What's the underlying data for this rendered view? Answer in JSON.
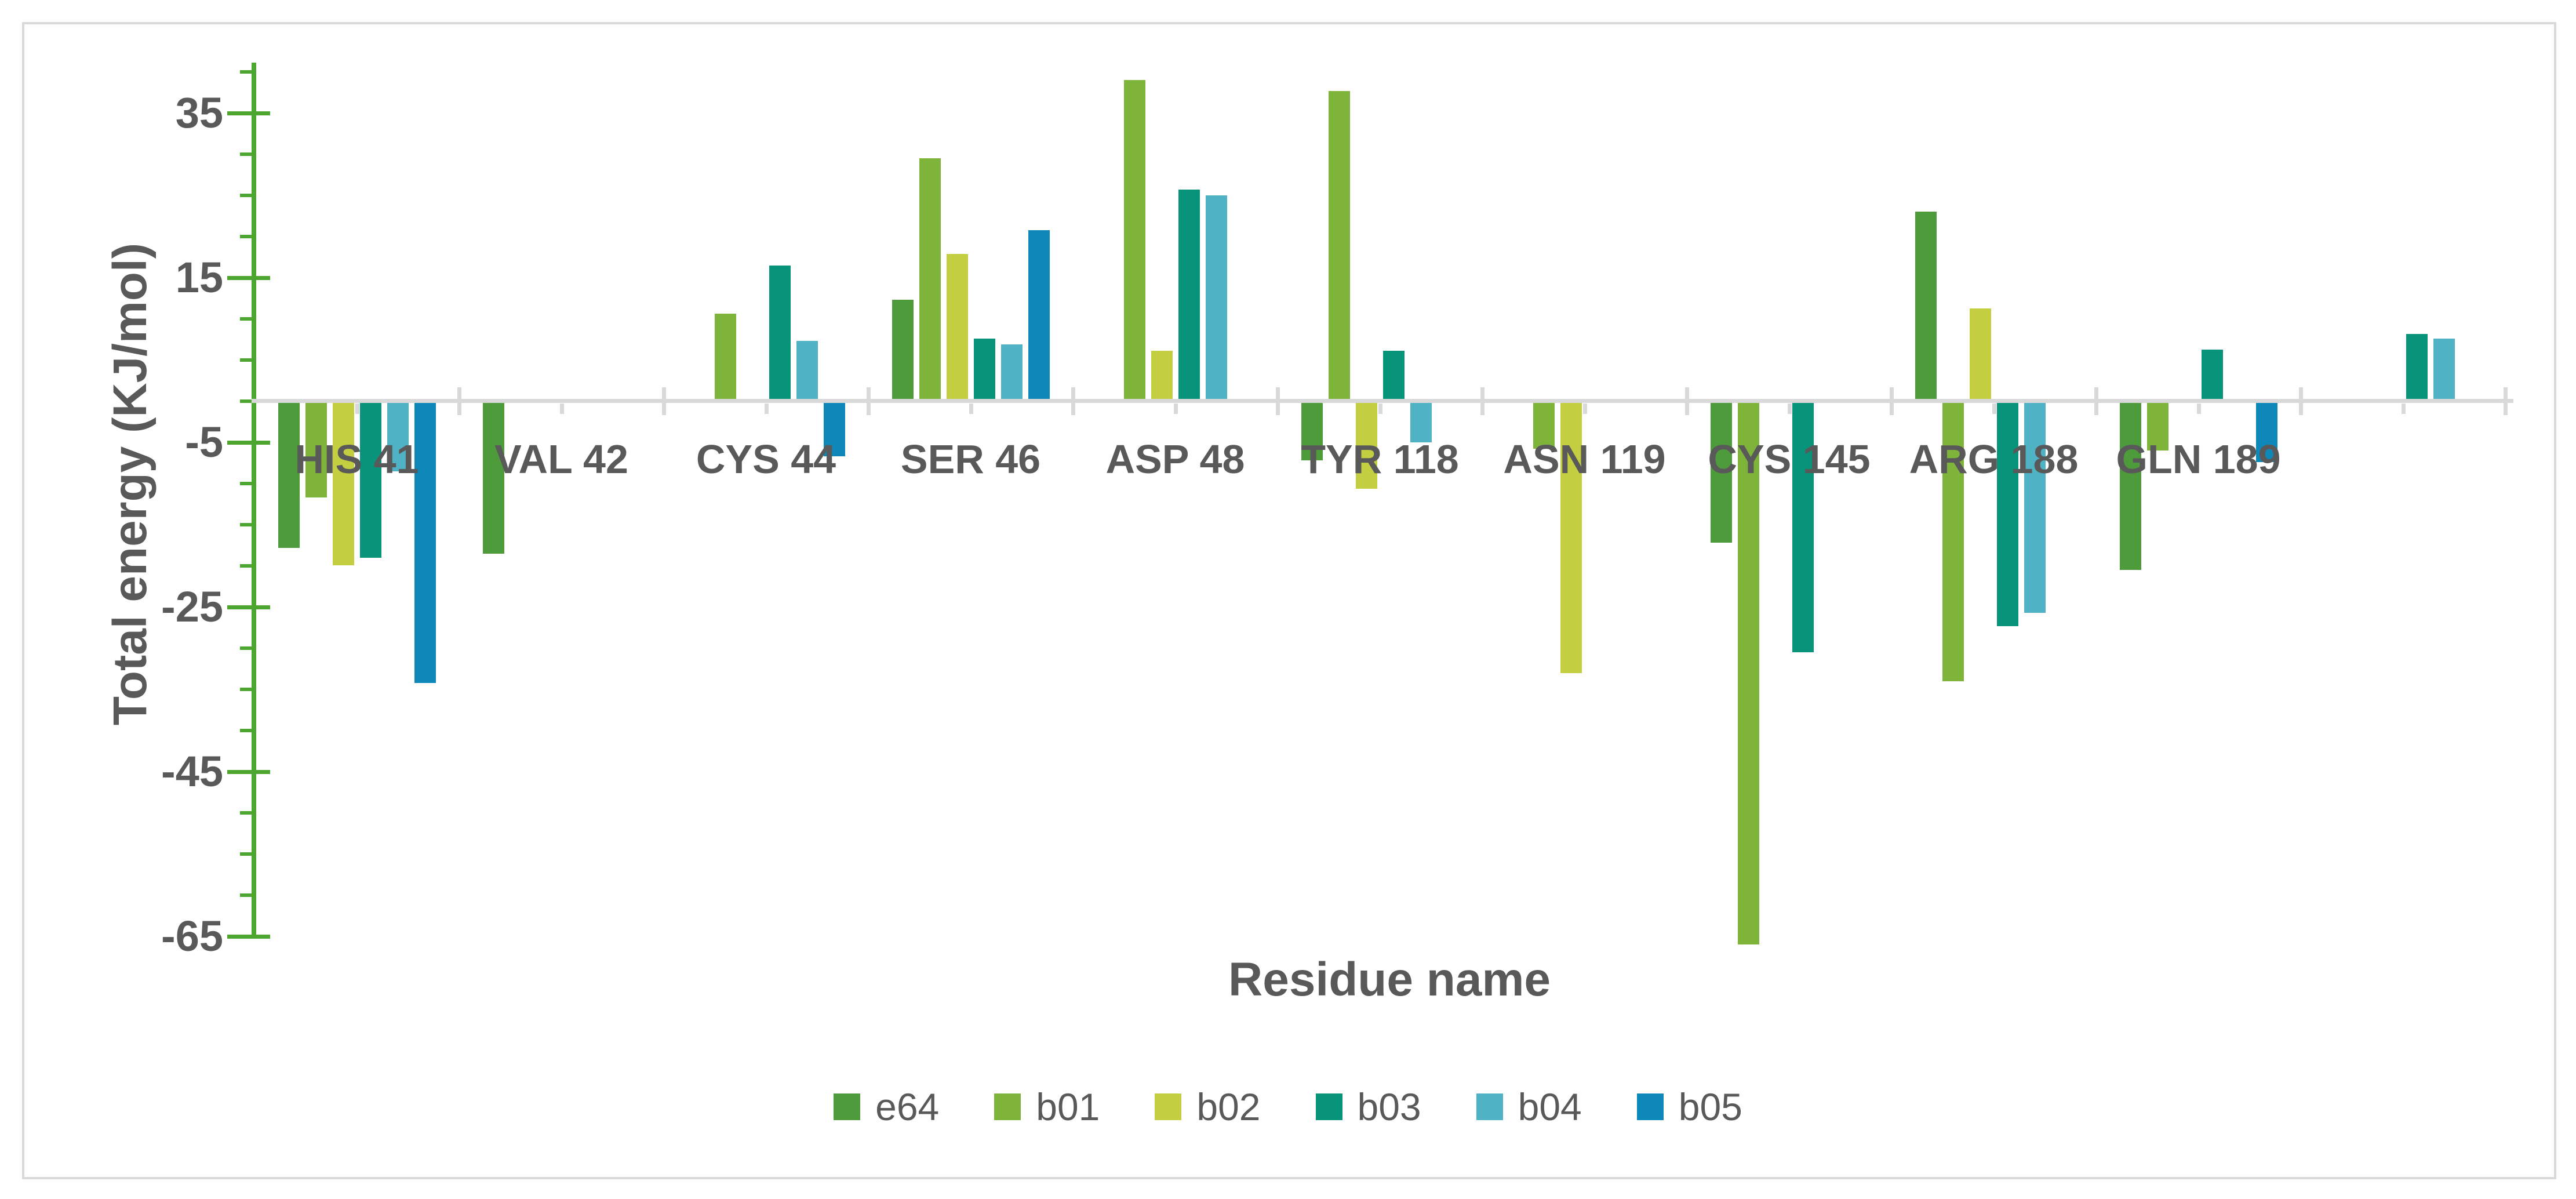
{
  "frame": {
    "border_color": "#D9D9D9",
    "background_color": "#FFFFFF"
  },
  "y_axis": {
    "title": "Total energy (KJ/mol)",
    "tick_labels": [
      "35",
      "15",
      "-5",
      "-25",
      "-45",
      "-65"
    ],
    "tick_values": [
      35,
      15,
      -5,
      -25,
      -45,
      -65
    ],
    "minor_tick_step": 5,
    "axis_color": "#4CA62F",
    "label_color": "#595959"
  },
  "x_axis": {
    "title": "Residue name",
    "line_color": "#D9D9D9",
    "label_color": "#595959"
  },
  "legend": [
    {
      "label": "e64",
      "color": "#4E9B3C"
    },
    {
      "label": "b01",
      "color": "#7FB43B"
    },
    {
      "label": "b02",
      "color": "#C3CE40"
    },
    {
      "label": "b03",
      "color": "#07947A"
    },
    {
      "label": "b04",
      "color": "#4FB3C5"
    },
    {
      "label": "b05",
      "color": "#0E88B9"
    }
  ],
  "chart_data": {
    "type": "bar",
    "title": "",
    "xlabel": "Residue name",
    "ylabel": "Total energy (KJ/mol)",
    "ylim": [
      -65,
      40
    ],
    "grid": false,
    "legend_position": "bottom",
    "categories": [
      "HIS 41",
      "VAL 42",
      "CYS 44",
      "SER 46",
      "ASP 48",
      "TYR 118",
      "ASN 119",
      "CYS 145",
      "ARG 188",
      "GLN 189",
      ""
    ],
    "series": [
      {
        "name": "e64",
        "color": "#4E9B3C",
        "values": [
          -17.8,
          -18.5,
          0,
          12.3,
          0,
          -7.2,
          0,
          -17.2,
          23.0,
          -20.5,
          0
        ]
      },
      {
        "name": "b01",
        "color": "#7FB43B",
        "values": [
          -11.7,
          0,
          10.6,
          29.5,
          39.0,
          37.7,
          -5.8,
          -66.0,
          -34.0,
          -6.0,
          0
        ]
      },
      {
        "name": "b02",
        "color": "#C3CE40",
        "values": [
          -19.9,
          0,
          0,
          17.9,
          6.1,
          -10.6,
          -33.0,
          0,
          11.3,
          0,
          0
        ]
      },
      {
        "name": "b03",
        "color": "#07947A",
        "values": [
          -19.0,
          0,
          16.5,
          7.6,
          25.7,
          6.1,
          0,
          -30.5,
          -27.3,
          6.3,
          8.2
        ]
      },
      {
        "name": "b04",
        "color": "#4FB3C5",
        "values": [
          -8.5,
          0,
          7.3,
          6.9,
          25.0,
          -5.0,
          0,
          0,
          -25.7,
          0,
          7.6
        ]
      },
      {
        "name": "b05",
        "color": "#0E88B9",
        "values": [
          -34.2,
          0,
          -6.7,
          20.8,
          0,
          0,
          0,
          0,
          0,
          -7.4,
          0
        ]
      }
    ]
  }
}
